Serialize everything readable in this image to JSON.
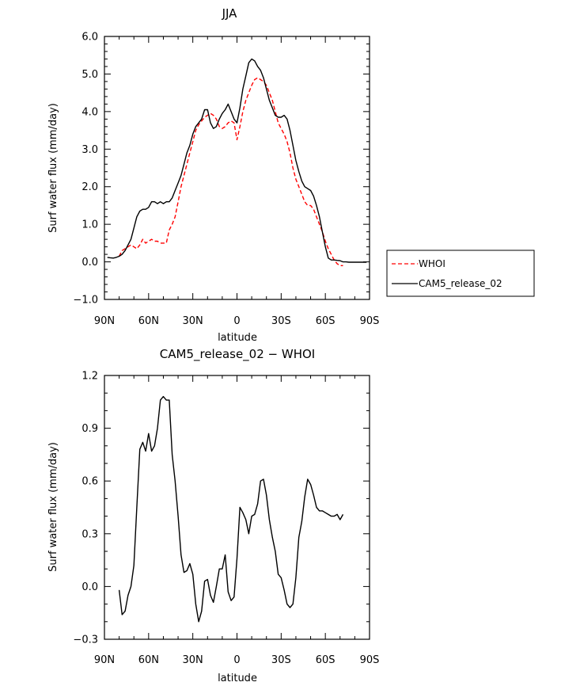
{
  "chart_data": [
    {
      "type": "line",
      "title": "JJA",
      "xlabel": "latitude",
      "ylabel": "Surf water flux (mm/day)",
      "xlim": [
        90,
        -90
      ],
      "ylim": [
        -1.0,
        6.0
      ],
      "x_ticks": [
        {
          "value": 90,
          "label": "90N"
        },
        {
          "value": 60,
          "label": "60N"
        },
        {
          "value": 30,
          "label": "30N"
        },
        {
          "value": 0,
          "label": "0"
        },
        {
          "value": -30,
          "label": "30S"
        },
        {
          "value": -60,
          "label": "60S"
        },
        {
          "value": -90,
          "label": "90S"
        }
      ],
      "y_ticks": [
        {
          "value": -1.0,
          "label": "−1.0"
        },
        {
          "value": 0.0,
          "label": "0.0"
        },
        {
          "value": 1.0,
          "label": "1.0"
        },
        {
          "value": 2.0,
          "label": "2.0"
        },
        {
          "value": 3.0,
          "label": "3.0"
        },
        {
          "value": 4.0,
          "label": "4.0"
        },
        {
          "value": 5.0,
          "label": "5.0"
        },
        {
          "value": 6.0,
          "label": "6.0"
        }
      ],
      "legend_position": "right",
      "series": [
        {
          "name": "WHOI",
          "color": "#ff0000",
          "dashed": true,
          "x": [
            80,
            78,
            76,
            74,
            72,
            70,
            68,
            66,
            64,
            62,
            60,
            58,
            56,
            54,
            52,
            50,
            48,
            46,
            44,
            42,
            40,
            38,
            36,
            34,
            32,
            30,
            28,
            26,
            24,
            22,
            20,
            18,
            16,
            14,
            12,
            10,
            8,
            6,
            4,
            2,
            0,
            -2,
            -4,
            -6,
            -8,
            -10,
            -12,
            -14,
            -16,
            -18,
            -20,
            -22,
            -24,
            -26,
            -28,
            -30,
            -32,
            -34,
            -36,
            -38,
            -40,
            -42,
            -44,
            -46,
            -48,
            -50,
            -52,
            -54,
            -56,
            -58,
            -60,
            -62,
            -64,
            -66,
            -68,
            -70,
            -72
          ],
          "y": [
            0.15,
            0.3,
            0.35,
            0.4,
            0.45,
            0.4,
            0.35,
            0.45,
            0.6,
            0.5,
            0.55,
            0.6,
            0.55,
            0.55,
            0.5,
            0.5,
            0.5,
            0.85,
            1.0,
            1.2,
            1.6,
            2.0,
            2.3,
            2.6,
            2.9,
            3.2,
            3.5,
            3.65,
            3.75,
            3.85,
            3.9,
            3.95,
            3.9,
            3.8,
            3.6,
            3.55,
            3.6,
            3.7,
            3.75,
            3.7,
            3.25,
            3.6,
            4.0,
            4.3,
            4.5,
            4.7,
            4.85,
            4.9,
            4.85,
            4.8,
            4.7,
            4.5,
            4.3,
            4.0,
            3.7,
            3.55,
            3.4,
            3.2,
            2.9,
            2.5,
            2.2,
            2.0,
            1.8,
            1.6,
            1.5,
            1.5,
            1.4,
            1.2,
            1.0,
            0.8,
            0.55,
            0.35,
            0.2,
            0.05,
            -0.05,
            -0.1,
            -0.1
          ]
        },
        {
          "name": "CAM5_release_02",
          "color": "#000000",
          "dashed": false,
          "x": [
            88,
            86,
            84,
            82,
            80,
            78,
            76,
            74,
            72,
            70,
            68,
            66,
            64,
            62,
            60,
            58,
            56,
            54,
            52,
            50,
            48,
            46,
            44,
            42,
            40,
            38,
            36,
            34,
            32,
            30,
            28,
            26,
            24,
            22,
            20,
            18,
            16,
            14,
            12,
            10,
            8,
            6,
            4,
            2,
            0,
            -2,
            -4,
            -6,
            -8,
            -10,
            -12,
            -14,
            -16,
            -18,
            -20,
            -22,
            -24,
            -26,
            -28,
            -30,
            -32,
            -34,
            -36,
            -38,
            -40,
            -42,
            -44,
            -46,
            -48,
            -50,
            -52,
            -54,
            -56,
            -58,
            -60,
            -62,
            -64,
            -66,
            -68,
            -70,
            -72,
            -74,
            -76,
            -78,
            -80,
            -82,
            -84,
            -86,
            -88
          ],
          "y": [
            0.12,
            0.11,
            0.1,
            0.12,
            0.15,
            0.2,
            0.3,
            0.45,
            0.6,
            0.9,
            1.2,
            1.35,
            1.4,
            1.4,
            1.45,
            1.6,
            1.6,
            1.55,
            1.6,
            1.55,
            1.6,
            1.6,
            1.7,
            1.9,
            2.1,
            2.3,
            2.6,
            2.9,
            3.1,
            3.4,
            3.6,
            3.7,
            3.8,
            4.05,
            4.05,
            3.7,
            3.55,
            3.6,
            3.8,
            3.95,
            4.05,
            4.2,
            4.0,
            3.8,
            3.7,
            4.1,
            4.6,
            4.95,
            5.3,
            5.4,
            5.35,
            5.2,
            5.1,
            4.9,
            4.6,
            4.3,
            4.1,
            3.9,
            3.85,
            3.85,
            3.9,
            3.8,
            3.5,
            3.1,
            2.7,
            2.4,
            2.15,
            2.0,
            1.95,
            1.9,
            1.75,
            1.5,
            1.2,
            0.8,
            0.4,
            0.1,
            0.05,
            0.05,
            0.04,
            0.03,
            0.0,
            0.0,
            -0.01,
            -0.01,
            -0.01,
            -0.01,
            -0.01,
            -0.01,
            -0.01
          ]
        }
      ]
    },
    {
      "type": "line",
      "title": "CAM5_release_02 − WHOI",
      "xlabel": "latitude",
      "ylabel": "Surf water flux (mm/day)",
      "xlim": [
        90,
        -90
      ],
      "ylim": [
        -0.3,
        1.2
      ],
      "x_ticks": [
        {
          "value": 90,
          "label": "90N"
        },
        {
          "value": 60,
          "label": "60N"
        },
        {
          "value": 30,
          "label": "30N"
        },
        {
          "value": 0,
          "label": "0"
        },
        {
          "value": -30,
          "label": "30S"
        },
        {
          "value": -60,
          "label": "60S"
        },
        {
          "value": -90,
          "label": "90S"
        }
      ],
      "y_ticks": [
        {
          "value": -0.3,
          "label": "−0.3"
        },
        {
          "value": 0.0,
          "label": "0.0"
        },
        {
          "value": 0.3,
          "label": "0.3"
        },
        {
          "value": 0.6,
          "label": "0.6"
        },
        {
          "value": 0.9,
          "label": "0.9"
        },
        {
          "value": 1.2,
          "label": "1.2"
        }
      ],
      "series": [
        {
          "color": "#000000",
          "dashed": false,
          "x": [
            80,
            78,
            76,
            74,
            72,
            70,
            68,
            66,
            64,
            62,
            60,
            58,
            56,
            54,
            52,
            50,
            48,
            46,
            44,
            42,
            40,
            38,
            36,
            34,
            32,
            30,
            28,
            26,
            24,
            22,
            20,
            18,
            16,
            14,
            12,
            10,
            8,
            6,
            4,
            2,
            0,
            -2,
            -4,
            -6,
            -8,
            -10,
            -12,
            -14,
            -16,
            -18,
            -20,
            -22,
            -24,
            -26,
            -28,
            -30,
            -32,
            -34,
            -36,
            -38,
            -40,
            -42,
            -44,
            -46,
            -48,
            -50,
            -52,
            -54,
            -56,
            -58,
            -60,
            -62,
            -64,
            -66,
            -68,
            -70,
            -72
          ],
          "y": [
            -0.02,
            -0.16,
            -0.14,
            -0.05,
            0.0,
            0.12,
            0.45,
            0.78,
            0.82,
            0.77,
            0.87,
            0.77,
            0.8,
            0.9,
            1.06,
            1.08,
            1.06,
            1.06,
            0.75,
            0.6,
            0.4,
            0.18,
            0.08,
            0.09,
            0.13,
            0.07,
            -0.1,
            -0.2,
            -0.14,
            0.03,
            0.04,
            -0.05,
            -0.09,
            0.0,
            0.1,
            0.1,
            0.18,
            -0.03,
            -0.08,
            -0.06,
            0.16,
            0.45,
            0.42,
            0.38,
            0.3,
            0.4,
            0.41,
            0.47,
            0.6,
            0.61,
            0.52,
            0.38,
            0.28,
            0.2,
            0.07,
            0.05,
            -0.02,
            -0.1,
            -0.12,
            -0.1,
            0.05,
            0.28,
            0.37,
            0.51,
            0.61,
            0.58,
            0.52,
            0.45,
            0.43,
            0.43,
            0.42,
            0.41,
            0.4,
            0.4,
            0.41,
            0.38,
            0.41
          ]
        }
      ]
    }
  ]
}
